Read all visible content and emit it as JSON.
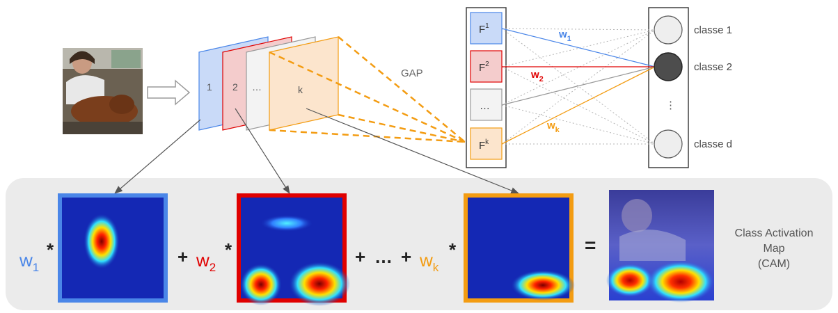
{
  "feature_maps": [
    "1",
    "2",
    "…",
    "k"
  ],
  "gap_label": "GAP",
  "features": [
    {
      "label": "F",
      "sup": "1"
    },
    {
      "label": "F",
      "sup": "2"
    },
    {
      "label": "…",
      "sup": ""
    },
    {
      "label": "F",
      "sup": "k"
    }
  ],
  "weights": [
    {
      "base": "w",
      "sub": "1"
    },
    {
      "base": "w",
      "sub": "2"
    },
    {
      "base": "w",
      "sub": "k"
    }
  ],
  "classes": [
    "classe 1",
    "classe 2",
    "⋮",
    "classe d"
  ],
  "equation": {
    "star": "*",
    "plus": "+",
    "ellipsis": "…",
    "equals": "="
  },
  "cam_title": [
    "Class Activation",
    "Map",
    "(CAM)"
  ],
  "colors": {
    "blue": "#4a86e8",
    "red": "#e00000",
    "orange": "#f39c12",
    "map_blue_bg": "#c9daf8",
    "map_red_bg": "#f4cccc",
    "map_gray_bg": "#f3f3f3",
    "map_orange_bg": "#fce5cd",
    "panel_bg": "#ebebeb",
    "heatmap_bg": "#1428b4"
  }
}
